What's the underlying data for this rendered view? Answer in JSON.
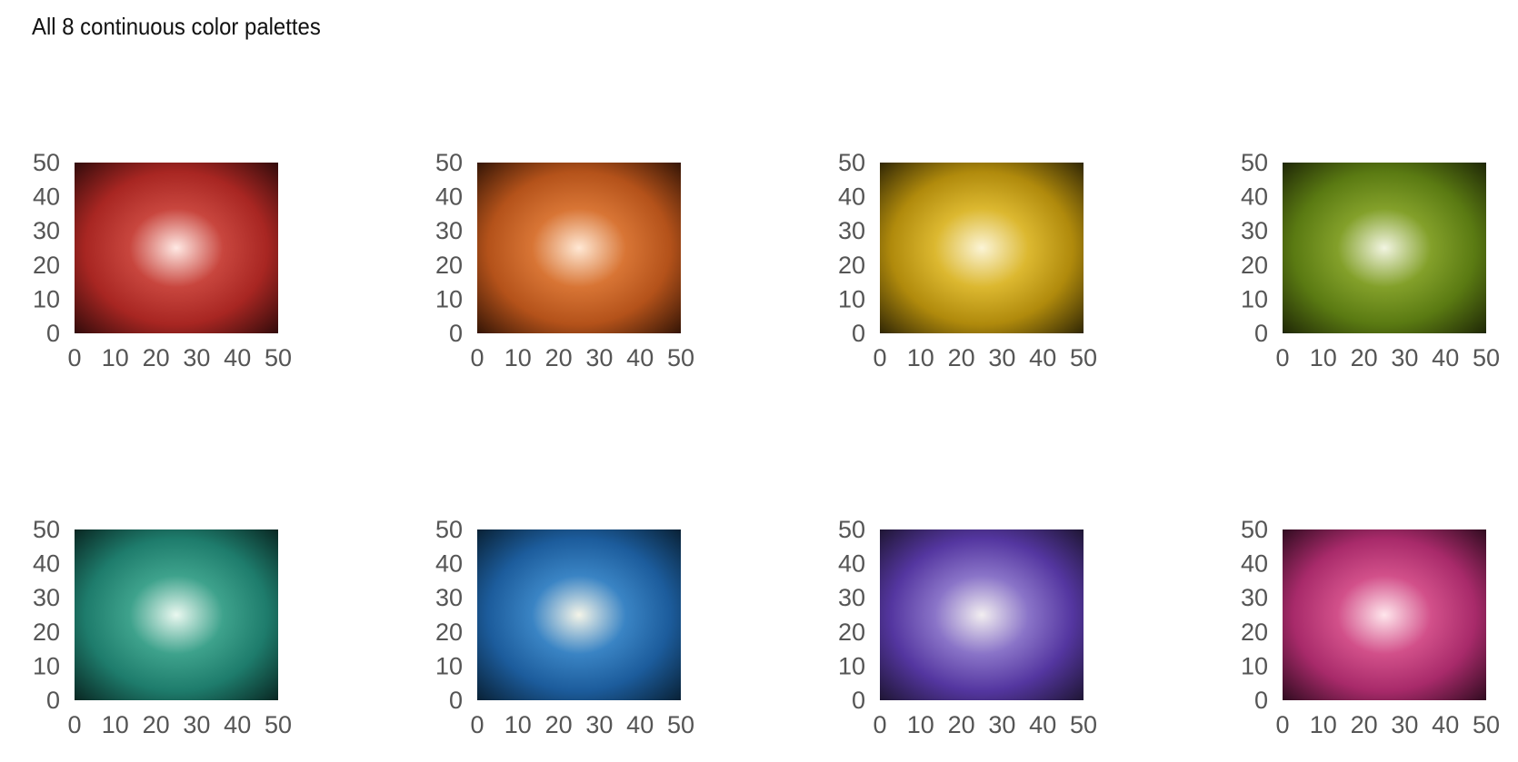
{
  "title": "All 8 continuous color palettes",
  "chart_data": [
    {
      "type": "heatmap",
      "palette": "red",
      "colors": [
        "#2c0a0a",
        "#a82622",
        "#c8463e",
        "#ffe9e4"
      ],
      "x_ticks": [
        "0",
        "10",
        "20",
        "30",
        "40",
        "50"
      ],
      "y_ticks": [
        "0",
        "10",
        "20",
        "30",
        "40",
        "50"
      ],
      "xlim": [
        0,
        50
      ],
      "ylim": [
        0,
        50
      ],
      "peak": [
        25,
        25
      ]
    },
    {
      "type": "heatmap",
      "palette": "orange",
      "colors": [
        "#2e1205",
        "#b4521a",
        "#d87535",
        "#ffe8d4"
      ],
      "x_ticks": [
        "0",
        "10",
        "20",
        "30",
        "40",
        "50"
      ],
      "y_ticks": [
        "0",
        "10",
        "20",
        "30",
        "40",
        "50"
      ],
      "xlim": [
        0,
        50
      ],
      "ylim": [
        0,
        50
      ],
      "peak": [
        25,
        25
      ]
    },
    {
      "type": "heatmap",
      "palette": "yellow",
      "colors": [
        "#2a2205",
        "#b08a0c",
        "#dcb830",
        "#fbf4d6"
      ],
      "x_ticks": [
        "0",
        "10",
        "20",
        "30",
        "40",
        "50"
      ],
      "y_ticks": [
        "0",
        "10",
        "20",
        "30",
        "40",
        "50"
      ],
      "xlim": [
        0,
        50
      ],
      "ylim": [
        0,
        50
      ],
      "peak": [
        25,
        25
      ]
    },
    {
      "type": "heatmap",
      "palette": "green",
      "colors": [
        "#1c2306",
        "#5a7a12",
        "#83a02a",
        "#f2f5e2"
      ],
      "x_ticks": [
        "0",
        "10",
        "20",
        "30",
        "40",
        "50"
      ],
      "y_ticks": [
        "0",
        "10",
        "20",
        "30",
        "40",
        "50"
      ],
      "xlim": [
        0,
        50
      ],
      "ylim": [
        0,
        50
      ],
      "peak": [
        25,
        25
      ]
    },
    {
      "type": "heatmap",
      "palette": "teal",
      "colors": [
        "#08221e",
        "#1e7c6c",
        "#3ea28c",
        "#eaf8f0"
      ],
      "x_ticks": [
        "0",
        "10",
        "20",
        "30",
        "40",
        "50"
      ],
      "y_ticks": [
        "0",
        "10",
        "20",
        "30",
        "40",
        "50"
      ],
      "xlim": [
        0,
        50
      ],
      "ylim": [
        0,
        50
      ],
      "peak": [
        25,
        25
      ]
    },
    {
      "type": "heatmap",
      "palette": "blue",
      "colors": [
        "#081e30",
        "#1c5c9c",
        "#3a84c4",
        "#f4f4e8"
      ],
      "x_ticks": [
        "0",
        "10",
        "20",
        "30",
        "40",
        "50"
      ],
      "y_ticks": [
        "0",
        "10",
        "20",
        "30",
        "40",
        "50"
      ],
      "xlim": [
        0,
        50
      ],
      "ylim": [
        0,
        50
      ],
      "peak": [
        25,
        25
      ]
    },
    {
      "type": "heatmap",
      "palette": "purple",
      "colors": [
        "#1c142e",
        "#5436a0",
        "#8a74c8",
        "#f2eef0"
      ],
      "x_ticks": [
        "0",
        "10",
        "20",
        "30",
        "40",
        "50"
      ],
      "y_ticks": [
        "0",
        "10",
        "20",
        "30",
        "40",
        "50"
      ],
      "xlim": [
        0,
        50
      ],
      "ylim": [
        0,
        50
      ],
      "peak": [
        25,
        25
      ]
    },
    {
      "type": "heatmap",
      "palette": "pink",
      "colors": [
        "#2a0a1c",
        "#a82a6a",
        "#d2508a",
        "#ffe6ec"
      ],
      "x_ticks": [
        "0",
        "10",
        "20",
        "30",
        "40",
        "50"
      ],
      "y_ticks": [
        "0",
        "10",
        "20",
        "30",
        "40",
        "50"
      ],
      "xlim": [
        0,
        50
      ],
      "ylim": [
        0,
        50
      ],
      "peak": [
        25,
        25
      ]
    }
  ]
}
